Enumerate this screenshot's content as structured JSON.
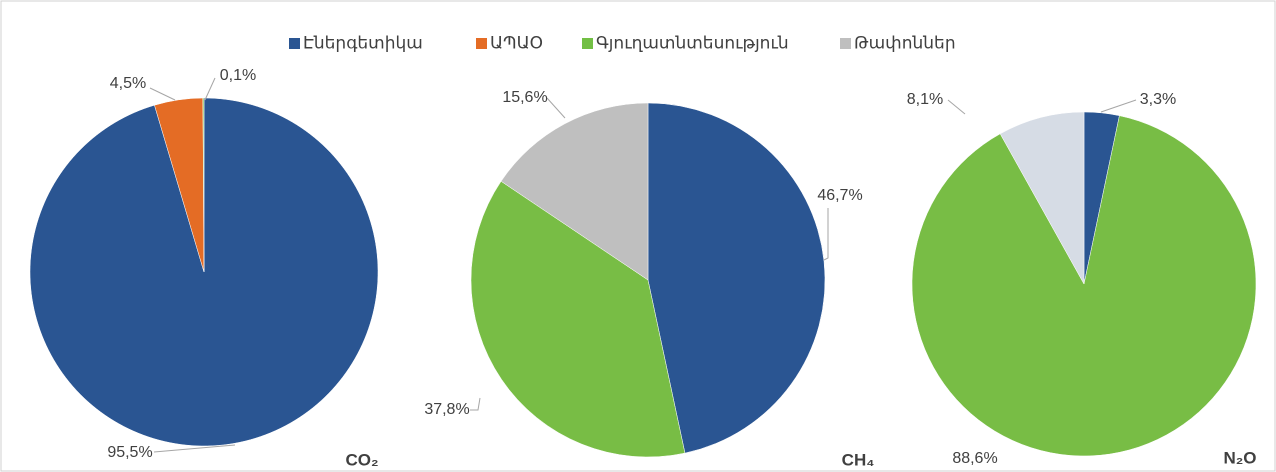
{
  "legend": {
    "names": [
      "Էներգետիկա",
      "ԱՊԱՕ",
      "Գյուղատնտեսություն",
      "Թափոններ"
    ],
    "colors": [
      "#2a5592",
      "#e46c25",
      "#72bf44",
      "#bfbfbf"
    ]
  },
  "chart_data": [
    {
      "type": "pie",
      "title": "CO₂",
      "values": [
        95.5,
        4.5,
        0.1
      ],
      "value_labels": [
        "95,5%",
        "4,5%",
        "0,1%"
      ],
      "colors": [
        "#2a5592",
        "#e46c25",
        "#72bf44"
      ]
    },
    {
      "type": "pie",
      "title": "CH₄",
      "values": [
        46.7,
        37.8,
        15.6
      ],
      "value_labels": [
        "46,7%",
        "37,8%",
        "15,6%"
      ],
      "colors": [
        "#2a5592",
        "#78bd45",
        "#bfbfbf"
      ]
    },
    {
      "type": "pie",
      "title": "N₂O",
      "values": [
        3.3,
        88.6,
        8.1
      ],
      "value_labels": [
        "3,3%",
        "88,6%",
        "8,1%"
      ],
      "colors": [
        "#2a5592",
        "#78bd45",
        "#d6dce5"
      ]
    }
  ]
}
